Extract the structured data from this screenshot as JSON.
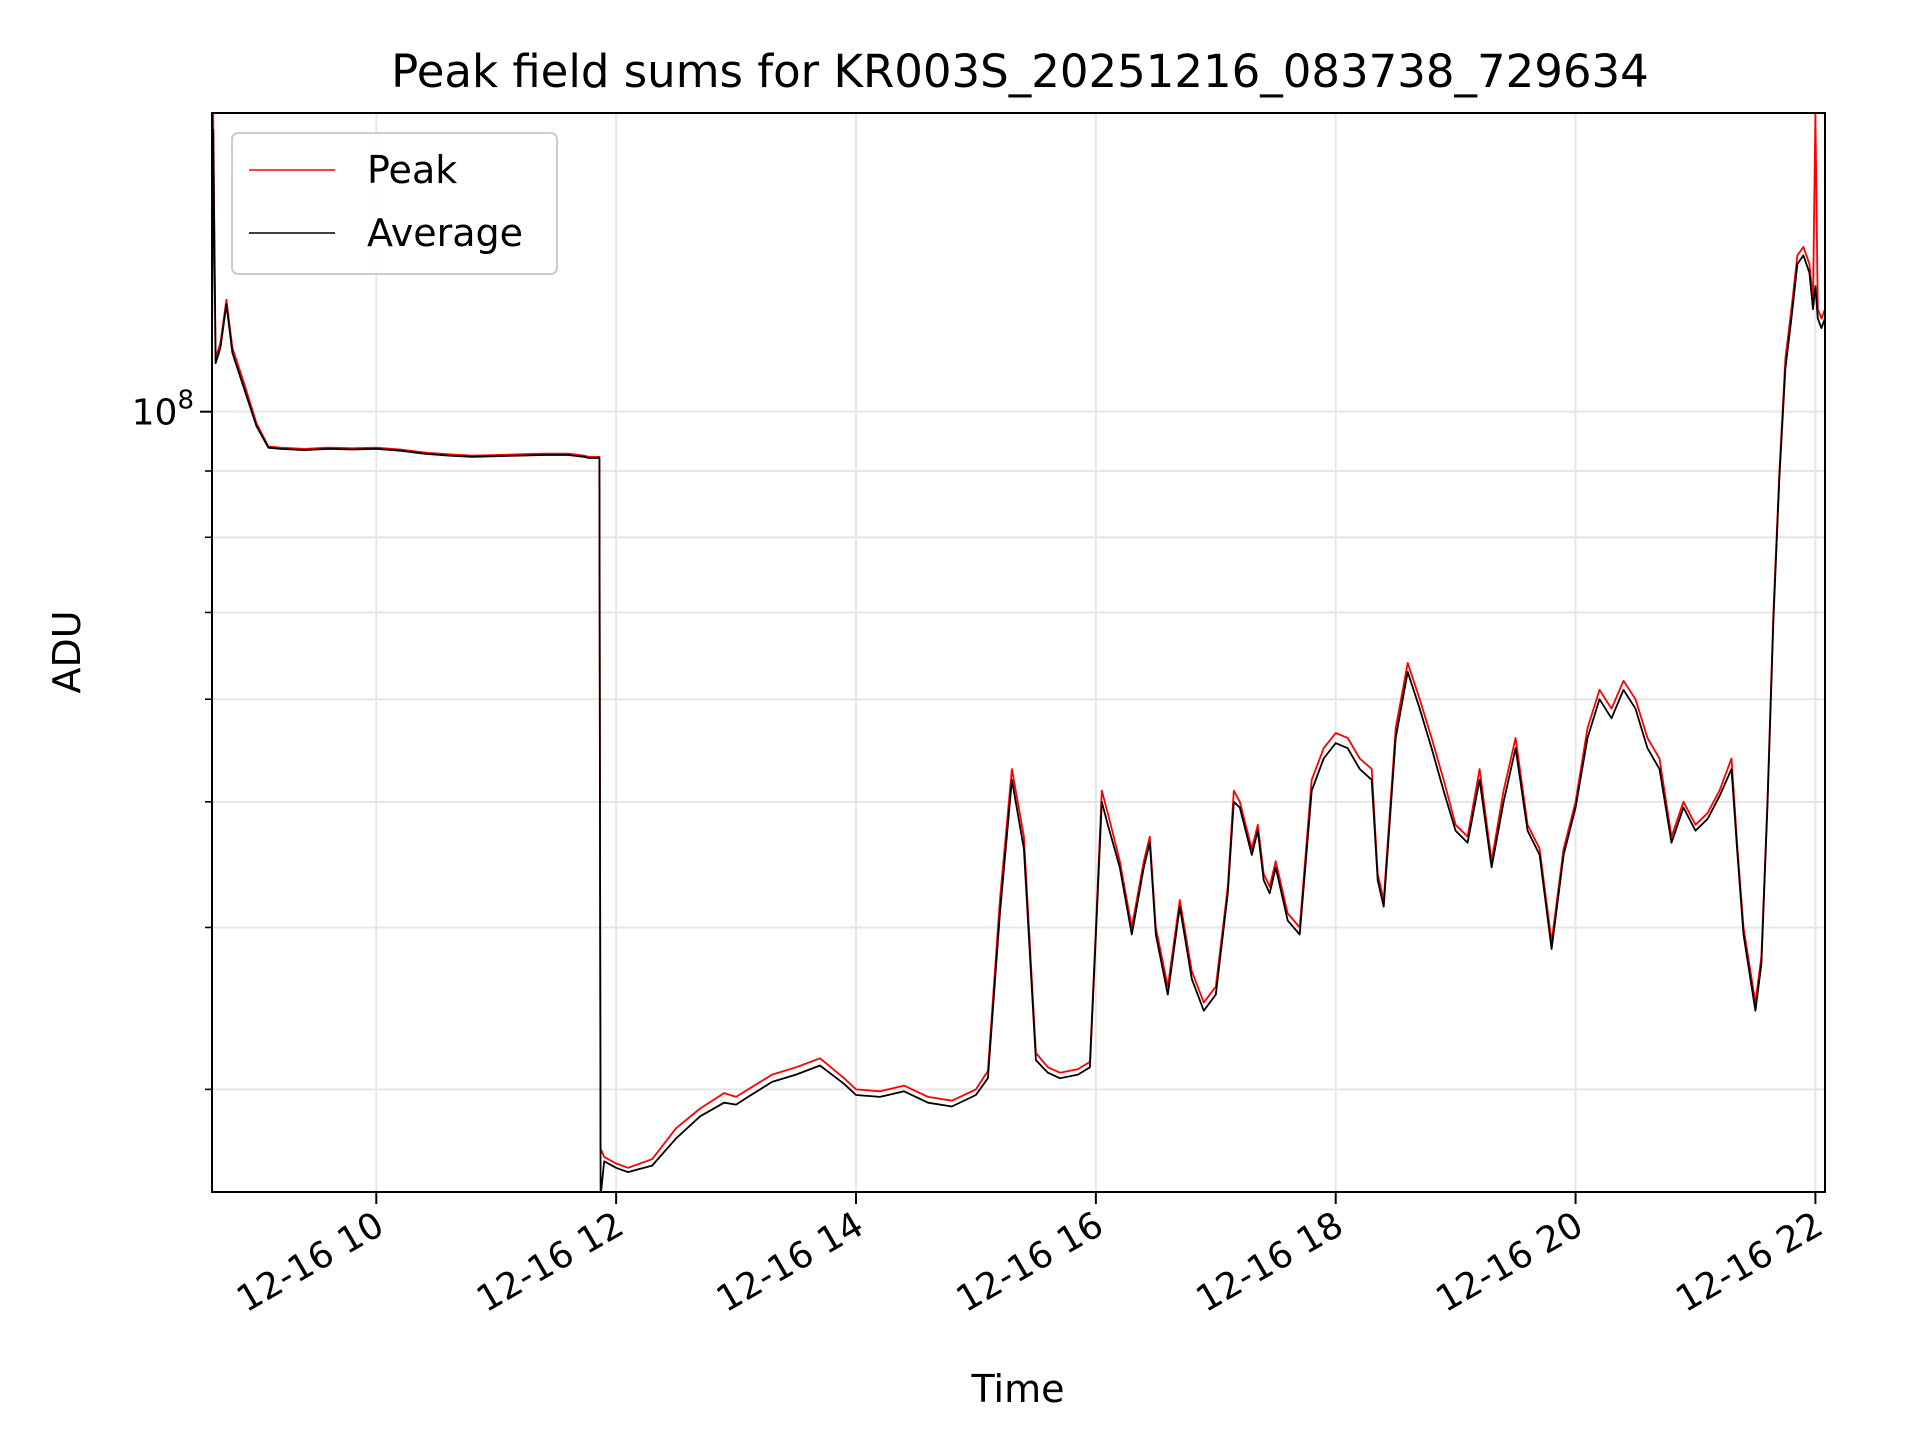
{
  "chart_data": {
    "type": "line",
    "title": "Peak field sums for KR003S_20251216_083738_729634",
    "xlabel": "Time",
    "ylabel": "ADU",
    "yscale": "log",
    "grid": true,
    "legend": {
      "placement": "top-left"
    },
    "x_range_hours": [
      8.63,
      22.08
    ],
    "y_range": [
      25000000,
      170000000
    ],
    "x_ticks": [
      {
        "value": 10,
        "label": "12-16 10"
      },
      {
        "value": 12,
        "label": "12-16 12"
      },
      {
        "value": 14,
        "label": "12-16 14"
      },
      {
        "value": 16,
        "label": "12-16 16"
      },
      {
        "value": 18,
        "label": "12-16 18"
      },
      {
        "value": 20,
        "label": "12-16 20"
      },
      {
        "value": 22,
        "label": "12-16 22"
      }
    ],
    "y_major_ticks": [
      {
        "value": 100000000,
        "base": "10",
        "exp": "8"
      }
    ],
    "y_minor_ticks": [
      30000000,
      40000000,
      50000000,
      60000000,
      70000000,
      80000000,
      90000000
    ],
    "series": [
      {
        "name": "Peak",
        "color": "#ff0000",
        "x": [
          8.63,
          8.64,
          8.66,
          8.7,
          8.75,
          8.8,
          8.9,
          9.0,
          9.1,
          9.2,
          9.4,
          9.6,
          9.8,
          10.0,
          10.2,
          10.4,
          10.6,
          10.8,
          11.0,
          11.2,
          11.4,
          11.6,
          11.73,
          11.77,
          11.86,
          11.87,
          11.9,
          12.0,
          12.1,
          12.3,
          12.5,
          12.7,
          12.9,
          13.0,
          13.1,
          13.3,
          13.5,
          13.7,
          13.9,
          14.0,
          14.2,
          14.4,
          14.6,
          14.8,
          15.0,
          15.1,
          15.2,
          15.3,
          15.4,
          15.5,
          15.6,
          15.7,
          15.85,
          15.95,
          16.0,
          16.05,
          16.1,
          16.2,
          16.3,
          16.4,
          16.45,
          16.5,
          16.6,
          16.7,
          16.8,
          16.9,
          17.0,
          17.1,
          17.15,
          17.2,
          17.3,
          17.35,
          17.4,
          17.45,
          17.5,
          17.6,
          17.7,
          17.8,
          17.9,
          18.0,
          18.1,
          18.2,
          18.3,
          18.35,
          18.4,
          18.5,
          18.6,
          18.7,
          18.8,
          18.9,
          19.0,
          19.1,
          19.2,
          19.3,
          19.4,
          19.5,
          19.6,
          19.7,
          19.8,
          19.9,
          20.0,
          20.1,
          20.2,
          20.3,
          20.4,
          20.5,
          20.6,
          20.7,
          20.8,
          20.9,
          21.0,
          21.1,
          21.2,
          21.3,
          21.35,
          21.4,
          21.5,
          21.55,
          21.6,
          21.65,
          21.7,
          21.75,
          21.8,
          21.85,
          21.9,
          21.95,
          21.98,
          22.0,
          22.02,
          22.05,
          22.08
        ],
        "y": [
          114000000,
          170000000,
          110000000,
          113000000,
          122000000,
          112000000,
          105000000,
          98000000,
          94000000,
          93800000,
          93600000,
          93800000,
          93700000,
          93800000,
          93500000,
          93000000,
          92700000,
          92500000,
          92600000,
          92700000,
          92800000,
          92800000,
          92500000,
          92300000,
          92300000,
          27000000,
          26600000,
          26300000,
          26100000,
          26500000,
          28000000,
          29000000,
          29800000,
          29600000,
          30000000,
          30800000,
          31200000,
          31700000,
          30600000,
          30000000,
          29900000,
          30200000,
          29600000,
          29400000,
          30000000,
          31000000,
          42000000,
          53000000,
          47000000,
          32000000,
          31200000,
          30900000,
          31100000,
          31500000,
          40000000,
          51000000,
          49000000,
          45000000,
          40000000,
          45000000,
          47000000,
          40000000,
          36000000,
          42000000,
          37000000,
          35000000,
          36000000,
          43000000,
          51000000,
          50000000,
          46000000,
          48000000,
          44000000,
          43000000,
          45000000,
          41000000,
          40000000,
          52000000,
          55000000,
          56500000,
          56000000,
          54000000,
          53000000,
          44000000,
          42000000,
          57000000,
          64000000,
          60000000,
          56000000,
          52000000,
          48000000,
          47000000,
          53000000,
          45000000,
          51000000,
          56000000,
          48000000,
          46000000,
          39000000,
          46000000,
          50000000,
          57000000,
          61000000,
          59000000,
          62000000,
          60000000,
          56000000,
          54000000,
          47000000,
          50000000,
          48000000,
          49000000,
          51000000,
          54000000,
          46000000,
          40000000,
          35000000,
          38000000,
          50000000,
          70000000,
          90000000,
          110000000,
          120000000,
          132000000,
          134000000,
          130000000,
          122000000,
          170000000,
          120000000,
          118000000,
          120000000
        ]
      },
      {
        "name": "Average",
        "color": "#000000",
        "x": [
          8.63,
          8.64,
          8.66,
          8.7,
          8.75,
          8.8,
          8.9,
          9.0,
          9.1,
          9.2,
          9.4,
          9.6,
          9.8,
          10.0,
          10.2,
          10.4,
          10.6,
          10.8,
          11.0,
          11.2,
          11.4,
          11.6,
          11.73,
          11.77,
          11.86,
          11.87,
          11.9,
          12.0,
          12.1,
          12.3,
          12.5,
          12.7,
          12.9,
          13.0,
          13.1,
          13.3,
          13.5,
          13.7,
          13.9,
          14.0,
          14.2,
          14.4,
          14.6,
          14.8,
          15.0,
          15.1,
          15.2,
          15.3,
          15.4,
          15.5,
          15.6,
          15.7,
          15.85,
          15.95,
          16.0,
          16.05,
          16.1,
          16.2,
          16.3,
          16.4,
          16.45,
          16.5,
          16.6,
          16.7,
          16.8,
          16.9,
          17.0,
          17.1,
          17.15,
          17.2,
          17.3,
          17.35,
          17.4,
          17.45,
          17.5,
          17.6,
          17.7,
          17.8,
          17.9,
          18.0,
          18.1,
          18.2,
          18.3,
          18.35,
          18.4,
          18.5,
          18.6,
          18.7,
          18.8,
          18.9,
          19.0,
          19.1,
          19.2,
          19.3,
          19.4,
          19.5,
          19.6,
          19.7,
          19.8,
          19.9,
          20.0,
          20.1,
          20.2,
          20.3,
          20.4,
          20.5,
          20.6,
          20.7,
          20.8,
          20.9,
          21.0,
          21.1,
          21.2,
          21.3,
          21.35,
          21.4,
          21.5,
          21.55,
          21.6,
          21.65,
          21.7,
          21.75,
          21.8,
          21.85,
          21.9,
          21.95,
          21.98,
          22.0,
          22.02,
          22.05,
          22.08
        ],
        "y": [
          113000000,
          165000000,
          109000000,
          112000000,
          121000000,
          111000000,
          104000000,
          97500000,
          93800000,
          93600000,
          93400000,
          93600000,
          93500000,
          93600000,
          93300000,
          92800000,
          92500000,
          92300000,
          92400000,
          92500000,
          92600000,
          92600000,
          92300000,
          92100000,
          92100000,
          24800000,
          26400000,
          26100000,
          25900000,
          26200000,
          27500000,
          28600000,
          29300000,
          29200000,
          29600000,
          30400000,
          30800000,
          31300000,
          30300000,
          29700000,
          29600000,
          29900000,
          29300000,
          29100000,
          29700000,
          30600000,
          41000000,
          52000000,
          46000000,
          31600000,
          30900000,
          30600000,
          30800000,
          31200000,
          39500000,
          50000000,
          48000000,
          44500000,
          39500000,
          44500000,
          46500000,
          39500000,
          35500000,
          41500000,
          36500000,
          34500000,
          35500000,
          42500000,
          50000000,
          49500000,
          45500000,
          47500000,
          43500000,
          42500000,
          44500000,
          40500000,
          39500000,
          51000000,
          54000000,
          55500000,
          55000000,
          53000000,
          52000000,
          43500000,
          41500000,
          56000000,
          63000000,
          59000000,
          55000000,
          51000000,
          47500000,
          46500000,
          52000000,
          44500000,
          50000000,
          55000000,
          47500000,
          45500000,
          38500000,
          45500000,
          49500000,
          56000000,
          60000000,
          58000000,
          61000000,
          59000000,
          55000000,
          53000000,
          46500000,
          49500000,
          47500000,
          48500000,
          50500000,
          53000000,
          45500000,
          39500000,
          34500000,
          37500000,
          49500000,
          69000000,
          89000000,
          108000000,
          118000000,
          130000000,
          132000000,
          128000000,
          120000000,
          125000000,
          118000000,
          116000000,
          118000000
        ]
      }
    ]
  }
}
